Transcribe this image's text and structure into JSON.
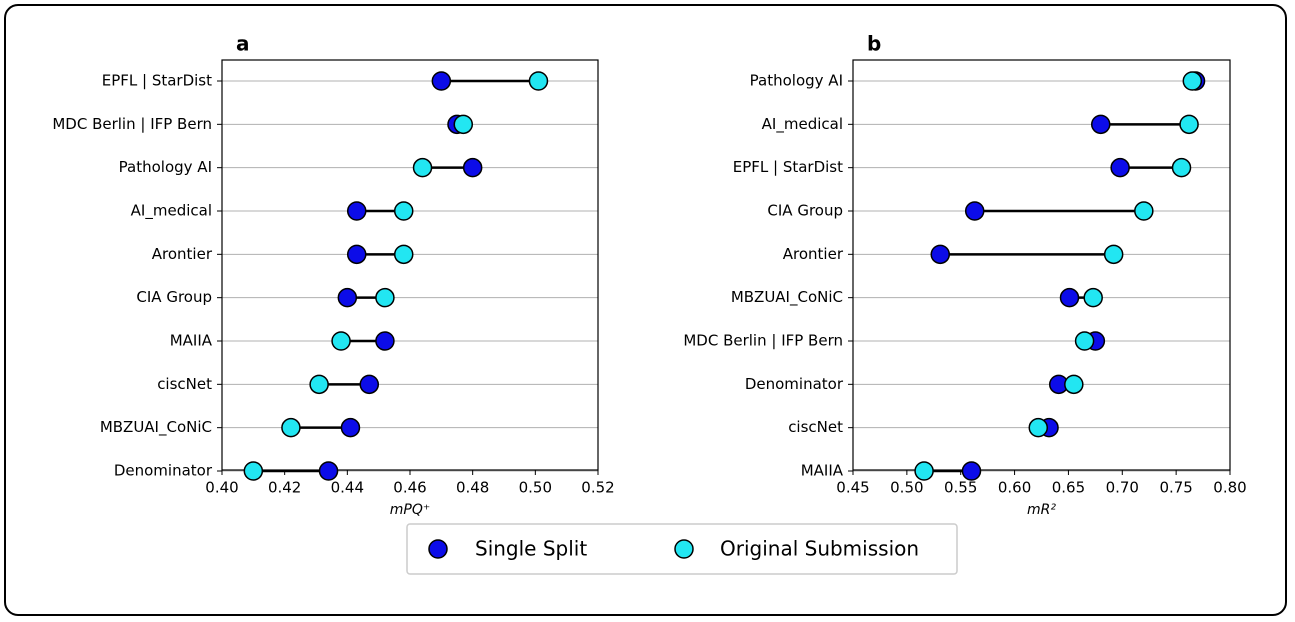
{
  "chart_data": [
    {
      "type": "dumbbell",
      "panel": "a",
      "xlabel": "mPQ⁺",
      "categories": [
        "EPFL | StarDist",
        "MDC Berlin | IFP Bern",
        "Pathology AI",
        "AI_medical",
        "Arontier",
        "CIA Group",
        "MAIIA",
        "ciscNet",
        "MBZUAI_CoNiC",
        "Denominator"
      ],
      "series": [
        {
          "name": "Single Split",
          "color": "#0c0ce8",
          "values": [
            0.47,
            0.475,
            0.48,
            0.443,
            0.443,
            0.44,
            0.452,
            0.447,
            0.441,
            0.434
          ]
        },
        {
          "name": "Original Submission",
          "color": "#22e6f2",
          "values": [
            0.501,
            0.477,
            0.464,
            0.458,
            0.458,
            0.452,
            0.438,
            0.431,
            0.422,
            0.41
          ]
        }
      ],
      "xlim": [
        0.4,
        0.52
      ],
      "xticks": [
        {
          "value": 0.4,
          "label": "0.40"
        },
        0.42,
        0.44,
        0.46,
        0.48,
        {
          "value": 0.5,
          "label": "0.50"
        },
        0.52
      ],
      "grid": true
    },
    {
      "type": "dumbbell",
      "panel": "b",
      "xlabel": "mR²",
      "categories": [
        "Pathology AI",
        "AI_medical",
        "EPFL | StarDist",
        "CIA Group",
        "Arontier",
        "MBZUAI_CoNiC",
        "MDC Berlin | IFP Bern",
        "Denominator",
        "ciscNet",
        "MAIIA"
      ],
      "series": [
        {
          "name": "Single Split",
          "color": "#0c0ce8",
          "values": [
            0.768,
            0.68,
            0.698,
            0.563,
            0.531,
            0.651,
            0.675,
            0.641,
            0.632,
            0.56
          ]
        },
        {
          "name": "Original Submission",
          "color": "#22e6f2",
          "values": [
            0.765,
            0.762,
            0.755,
            0.72,
            0.692,
            0.673,
            0.665,
            0.655,
            0.622,
            0.516
          ]
        }
      ],
      "xlim": [
        0.45,
        0.8
      ],
      "xticks": [
        0.45,
        {
          "value": 0.5,
          "label": "0.50"
        },
        0.55,
        {
          "value": 0.6,
          "label": "0.60"
        },
        0.65,
        {
          "value": 0.7,
          "label": "0.70"
        },
        0.75,
        {
          "value": 0.8,
          "label": "0.80"
        }
      ],
      "grid": true
    }
  ]
}
